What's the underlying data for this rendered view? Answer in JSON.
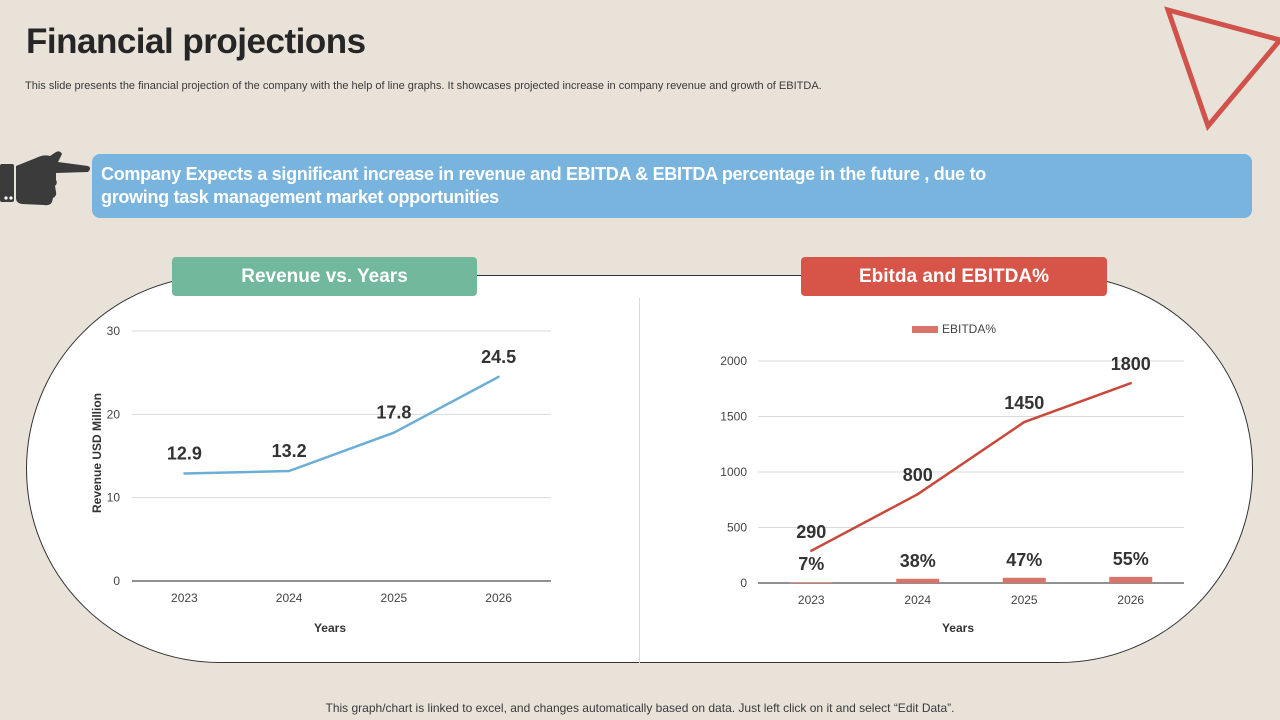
{
  "header": {
    "title": "Financial projections",
    "subtitle": "This slide presents the financial projection of the company with the help of line graphs. It showcases projected increase in company revenue and growth of EBITDA."
  },
  "banner": {
    "text_line1": "Company Expects a significant increase in revenue and EBITDA & EBITDA percentage in the future , due to",
    "text_line2": "growing task management market opportunities"
  },
  "colors": {
    "background": "#e8e2d9",
    "banner": "#78b4dd",
    "revenue_header": "#72b89c",
    "ebitda_header": "#d65548",
    "revenue_line": "#6baed6",
    "ebitda_line": "#c9483c",
    "ebitda_bar": "#d9746a",
    "triangle": "#d0524a"
  },
  "icons": {
    "hand": "pointing-hand-icon",
    "triangle": "triangle-outline-icon"
  },
  "chart_data": [
    {
      "header": "Revenue vs. Years",
      "type": "line",
      "categories": [
        "2023",
        "2024",
        "2025",
        "2026"
      ],
      "series": [
        {
          "name": "Revenue",
          "values": [
            12.9,
            13.2,
            17.8,
            24.5
          ]
        }
      ],
      "data_labels": [
        "12.9",
        "13.2",
        "17.8",
        "24.5"
      ],
      "xlabel": "Years",
      "ylabel": "Revenue USD Million",
      "ylim": [
        0,
        30
      ],
      "yticks": [
        0,
        10,
        20,
        30
      ],
      "ytick_labels": [
        "0",
        "10",
        "20",
        "30"
      ],
      "grid": true
    },
    {
      "header": "Ebitda and EBITDA%",
      "type": "line",
      "categories": [
        "2023",
        "2024",
        "2025",
        "2026"
      ],
      "series": [
        {
          "name": "Ebitda",
          "type": "line",
          "values": [
            290,
            800,
            1450,
            1800
          ]
        },
        {
          "name": "EBITDA%",
          "type": "bar",
          "values": [
            7,
            38,
            47,
            55
          ]
        }
      ],
      "line_labels": [
        "290",
        "800",
        "1450",
        "1800"
      ],
      "bar_labels": [
        "7%",
        "38%",
        "47%",
        "55%"
      ],
      "legend": [
        "EBITDA%"
      ],
      "legend_position": "top",
      "xlabel": "Years",
      "ylabel": "",
      "ylim": [
        0,
        2000
      ],
      "yticks": [
        0,
        500,
        1000,
        1500,
        2000
      ],
      "ytick_labels": [
        "0",
        "500",
        "1000",
        "1500",
        "2000"
      ],
      "grid": true
    }
  ],
  "footer": {
    "note": "This graph/chart is linked to excel,  and changes automatically based on data. Just left click on it and select “Edit Data”."
  }
}
